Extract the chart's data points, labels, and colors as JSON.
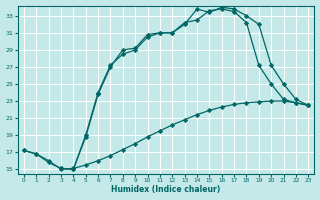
{
  "xlabel": "Humidex (Indice chaleur)",
  "bg_color": "#c5e8e8",
  "grid_color": "#ffffff",
  "line_color": "#006666",
  "xlim": [
    -0.5,
    23.5
  ],
  "ylim": [
    14.5,
    34.2
  ],
  "xticks": [
    0,
    1,
    2,
    3,
    4,
    5,
    6,
    7,
    8,
    9,
    10,
    11,
    12,
    13,
    14,
    15,
    16,
    17,
    18,
    19,
    20,
    21,
    22,
    23
  ],
  "yticks": [
    15,
    17,
    19,
    21,
    23,
    25,
    27,
    29,
    31,
    33
  ],
  "line1_x": [
    0,
    1,
    2,
    3,
    4,
    5,
    6,
    7,
    8,
    9,
    10,
    11,
    12,
    13,
    14,
    15,
    16,
    17,
    18,
    19,
    20,
    21,
    22,
    23
  ],
  "line1_y": [
    17.2,
    16.8,
    16.0,
    15.0,
    15.1,
    15.5,
    16.0,
    16.6,
    17.3,
    18.0,
    18.8,
    19.5,
    20.2,
    20.8,
    21.4,
    21.9,
    22.3,
    22.6,
    22.8,
    22.9,
    23.0,
    23.0,
    22.8,
    22.5
  ],
  "line2_x": [
    0,
    1,
    2,
    3,
    4,
    5,
    6,
    7,
    8,
    9,
    10,
    11,
    12,
    13,
    14,
    15,
    16,
    17,
    18,
    19,
    20,
    21,
    22,
    23
  ],
  "line2_y": [
    17.2,
    16.8,
    15.8,
    15.1,
    15.0,
    18.8,
    23.8,
    27.0,
    29.0,
    29.2,
    30.8,
    31.0,
    31.0,
    32.2,
    32.5,
    33.6,
    33.8,
    33.5,
    32.2,
    27.2,
    25.0,
    23.2,
    22.8,
    22.5
  ],
  "line3_x": [
    3,
    4,
    5,
    6,
    7,
    8,
    9,
    10,
    11,
    12,
    13,
    14,
    15,
    16,
    17,
    18,
    19,
    20,
    21,
    22,
    23
  ],
  "line3_y": [
    15.1,
    15.0,
    19.0,
    24.0,
    27.2,
    28.5,
    29.0,
    30.5,
    31.0,
    31.0,
    32.0,
    33.8,
    33.4,
    34.0,
    33.8,
    33.0,
    32.0,
    27.2,
    25.0,
    23.2,
    22.5
  ]
}
